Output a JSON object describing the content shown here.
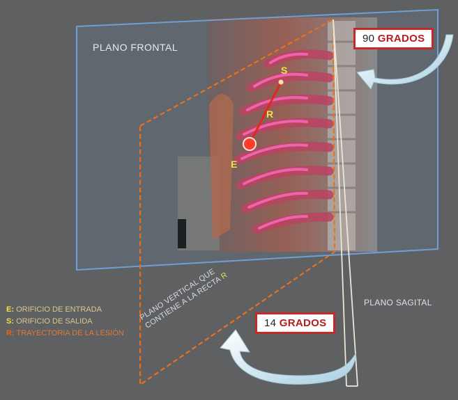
{
  "planes": {
    "frontal_label": "PLANO FRONTAL",
    "sagital_label": "PLANO SAGITAL",
    "vertical_label_line1": "PLANO VERTICAL QUE",
    "vertical_label_line2": "CONTIENE A LA RECTA",
    "vertical_label_r": "R"
  },
  "angles": {
    "frontal_value": "90",
    "frontal_unit": "GRADOS",
    "vertical_value": "14",
    "vertical_unit": "GRADOS"
  },
  "points": {
    "entry": "E",
    "exit": "S",
    "trajectory": "R"
  },
  "legend": [
    {
      "key": "E:",
      "text": "ORIFICIO DE ENTRADA"
    },
    {
      "key": "S:",
      "text": "ORIFICIO DE SALIDA"
    },
    {
      "key": "R:",
      "text": "TRAYECTORIA DE LA LESIÓN"
    }
  ],
  "colors": {
    "frontal_plane": "#6f9fd6",
    "vertical_plane": "#e8711f",
    "sagital_plane": "#e8e2d2",
    "trajectory": "#e0281c",
    "ribs": "#e0307a",
    "arrows": "#bfe0ef",
    "box_border": "#c42a2a"
  }
}
